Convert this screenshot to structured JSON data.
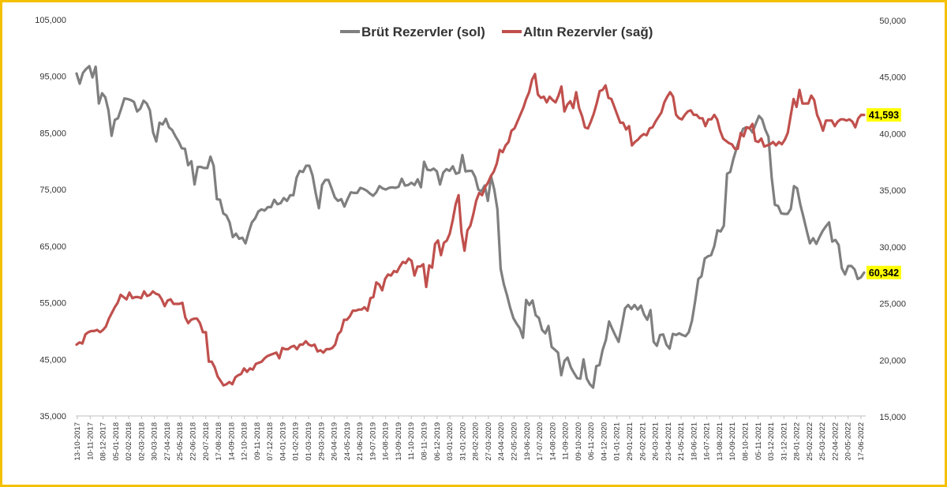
{
  "chart_data": {
    "type": "line",
    "legend_position": "top-center",
    "grid": false,
    "series": [
      {
        "name": "Brüt Rezervler (sol)",
        "axis": "left",
        "color": "#7f7f7f",
        "end_label": "60,342",
        "values": [
          95.5,
          93.7,
          95.6,
          96.3,
          96.8,
          94.8,
          96.7,
          90.2,
          92.0,
          91.3,
          89.0,
          84.5,
          87.3,
          87.6,
          89.3,
          91.1,
          91.0,
          90.8,
          90.5,
          88.8,
          89.3,
          90.7,
          90.2,
          89.0,
          85.1,
          83.5,
          86.8,
          86.5,
          87.5,
          86.0,
          85.5,
          84.4,
          83.5,
          82.3,
          82.2,
          79.3,
          80.0,
          75.9,
          79.0,
          79.0,
          78.8,
          78.8,
          80.8,
          79.2,
          73.3,
          73.2,
          70.8,
          70.4,
          69.2,
          66.6,
          67.2,
          66.3,
          66.5,
          65.5,
          67.5,
          69.2,
          69.9,
          71.1,
          71.5,
          71.3,
          71.9,
          71.9,
          73.2,
          72.4,
          72.6,
          73.5,
          73.0,
          74.0,
          74.0,
          77.1,
          78.3,
          78.1,
          79.2,
          79.2,
          77.5,
          74.4,
          71.7,
          75.8,
          76.7,
          76.7,
          75.2,
          73.6,
          73.0,
          73.3,
          72.0,
          73.3,
          74.5,
          74.4,
          74.4,
          75.3,
          75.1,
          74.8,
          74.3,
          73.9,
          74.5,
          75.6,
          75.2,
          75.0,
          75.3,
          75.4,
          75.3,
          75.5,
          76.9,
          75.7,
          75.8,
          76.2,
          75.8,
          76.8,
          75.4,
          79.9,
          78.5,
          78.4,
          78.7,
          78.2,
          75.9,
          78.0,
          78.6,
          78.3,
          79.1,
          77.8,
          78.0,
          81.1,
          78.2,
          78.3,
          78.3,
          77.2,
          75.0,
          74.7,
          75.7,
          73.0,
          77.3,
          75.0,
          71.5,
          61.0,
          58.3,
          56.3,
          54.1,
          52.3,
          51.3,
          50.5,
          48.8,
          55.5,
          54.6,
          55.4,
          52.8,
          52.3,
          50.2,
          49.6,
          50.9,
          47.2,
          46.7,
          46.2,
          42.2,
          44.7,
          45.3,
          43.6,
          42.6,
          41.7,
          41.6,
          45.0,
          41.6,
          40.6,
          40.0,
          43.8,
          44.0,
          46.7,
          48.4,
          51.7,
          50.4,
          49.2,
          48.1,
          50.9,
          54.0,
          54.6,
          53.9,
          54.6,
          53.8,
          54.5,
          52.9,
          52.0,
          53.7,
          48.1,
          47.4,
          49.3,
          49.4,
          47.6,
          46.9,
          49.5,
          49.3,
          49.6,
          49.3,
          49.1,
          49.8,
          51.8,
          55.3,
          59.2,
          59.7,
          62.8,
          63.2,
          63.4,
          65.0,
          67.8,
          67.6,
          68.6,
          77.8,
          78.1,
          80.4,
          82.3,
          84.1,
          85.7,
          86.0,
          85.9,
          85.1,
          86.6,
          88.0,
          87.4,
          85.6,
          84.3,
          77.2,
          72.3,
          72.1,
          70.8,
          70.7,
          70.7,
          71.6,
          75.6,
          75.2,
          72.3,
          70.1,
          67.7,
          65.5,
          66.4,
          65.4,
          66.6,
          67.7,
          68.5,
          69.2,
          65.8,
          66.1,
          65.2,
          61.1,
          60.0,
          61.5,
          61.5,
          60.9,
          59.2,
          59.5,
          60.342
        ]
      },
      {
        "name": "Altın Rezervler (sağ)",
        "axis": "right",
        "color": "#c0504d",
        "end_label": "41,593",
        "values": [
          21.3,
          21.5,
          21.4,
          22.2,
          22.4,
          22.5,
          22.5,
          22.6,
          22.4,
          22.6,
          22.9,
          23.6,
          24.1,
          24.6,
          25.0,
          25.7,
          25.5,
          25.3,
          25.9,
          25.4,
          25.5,
          25.5,
          25.4,
          26.0,
          25.6,
          25.7,
          26.0,
          25.8,
          25.7,
          25.3,
          24.7,
          25.2,
          25.3,
          24.9,
          24.9,
          24.9,
          25.0,
          23.7,
          23.2,
          23.5,
          23.6,
          23.6,
          23.2,
          22.4,
          22.4,
          19.8,
          19.8,
          19.3,
          18.5,
          18.1,
          17.7,
          17.8,
          18.0,
          17.8,
          18.4,
          18.6,
          18.7,
          19.2,
          18.9,
          19.2,
          19.1,
          19.6,
          19.7,
          19.8,
          20.1,
          20.3,
          20.4,
          20.5,
          20.6,
          20.1,
          21.0,
          20.9,
          20.9,
          21.1,
          21.2,
          20.9,
          21.3,
          21.3,
          21.6,
          21.3,
          21.2,
          21.3,
          20.7,
          20.8,
          20.6,
          20.9,
          20.9,
          21.0,
          21.3,
          22.2,
          22.5,
          23.5,
          23.5,
          23.8,
          24.3,
          24.3,
          24.4,
          24.4,
          24.6,
          24.3,
          25.4,
          25.5,
          26.8,
          26.6,
          26.1,
          27.1,
          27.5,
          27.4,
          27.8,
          27.7,
          28.2,
          28.6,
          28.5,
          28.9,
          28.7,
          27.4,
          28.2,
          28.2,
          28.4,
          26.4,
          28.3,
          28.1,
          30.2,
          30.5,
          29.2,
          30.3,
          30.5,
          31.1,
          32.3,
          33.7,
          34.5,
          31.2,
          29.6,
          31.4,
          31.8,
          32.8,
          34.0,
          34.7,
          34.5,
          35.2,
          35.6,
          36.2,
          36.6,
          37.3,
          38.5,
          38.3,
          38.9,
          39.2,
          40.2,
          40.4,
          41.0,
          41.6,
          42.2,
          43.0,
          43.6,
          44.7,
          45.2,
          43.4,
          43.1,
          43.2,
          42.7,
          43.2,
          42.9,
          42.7,
          43.3,
          44.1,
          41.9,
          42.5,
          42.8,
          42.2,
          43.6,
          42.2,
          41.5,
          40.5,
          40.4,
          41.0,
          41.7,
          42.6,
          43.7,
          43.8,
          44.2,
          43.1,
          43.0,
          42.3,
          41.6,
          40.9,
          40.9,
          40.3,
          40.6,
          38.9,
          39.2,
          39.4,
          39.7,
          39.9,
          39.8,
          40.4,
          40.5,
          41.0,
          41.4,
          41.8,
          42.7,
          43.2,
          43.6,
          43.2,
          41.6,
          41.3,
          41.2,
          41.6,
          41.9,
          42.0,
          41.6,
          41.6,
          41.3,
          41.3,
          40.6,
          41.2,
          41.2,
          41.6,
          41.2,
          40.2,
          39.5,
          39.3,
          39.1,
          39.0,
          38.6,
          38.6,
          40.0,
          39.7,
          40.5,
          40.4,
          40.8,
          39.3,
          39.2,
          39.5,
          38.8,
          38.9,
          39.0,
          39.2,
          38.9,
          39.2,
          39.0,
          39.4,
          40.0,
          41.5,
          43.0,
          42.3,
          43.8,
          42.6,
          42.6,
          42.6,
          43.3,
          42.9,
          41.6,
          41.0,
          40.2,
          41.1,
          41.1,
          41.1,
          40.6,
          41.0,
          41.2,
          41.2,
          41.1,
          41.2,
          41.0,
          40.5,
          41.3,
          41.6,
          41.593
        ]
      }
    ],
    "left_axis": {
      "min": 35000,
      "max": 105000,
      "ticks": [
        "35,000",
        "45,000",
        "55,000",
        "65,000",
        "75,000",
        "85,000",
        "95,000",
        "105,000"
      ]
    },
    "right_axis": {
      "min": 15000,
      "max": 50000,
      "ticks": [
        "15,000",
        "20,000",
        "25,000",
        "30,000",
        "35,000",
        "40,000",
        "45,000",
        "50,000"
      ]
    },
    "x_tick_labels": [
      "13-10-2017",
      "10-11-2017",
      "08-12-2017",
      "05-01-2018",
      "02-02-2018",
      "02-03-2018",
      "30-03-2018",
      "27-04-2018",
      "25-05-2018",
      "22-06-2018",
      "20-07-2018",
      "17-08-2018",
      "14-09-2018",
      "12-10-2018",
      "09-11-2018",
      "07-12-2018",
      "04-01-2019",
      "01-02-2019",
      "01-03-2019",
      "29-03-2019",
      "26-04-2019",
      "24-05-2019",
      "21-06-2019",
      "19-07-2019",
      "16-08-2019",
      "13-09-2019",
      "11-10-2019",
      "08-11-2019",
      "06-12-2019",
      "03-01-2020",
      "31-01-2020",
      "28-02-2020",
      "27-03-2020",
      "24-04-2020",
      "22-05-2020",
      "19-06-2020",
      "17-07-2020",
      "14-08-2020",
      "11-09-2020",
      "09-10-2020",
      "06-11-2020",
      "04-12-2020",
      "01-01-2021",
      "29-01-2021",
      "26-02-2021",
      "26-03-2021",
      "23-04-2021",
      "21-05-2021",
      "18-06-2021",
      "16-07-2021",
      "13-08-2021",
      "10-09-2021",
      "08-10-2021",
      "05-11-2021",
      "03-12-2021",
      "31-12-2021",
      "28-01-2022",
      "25-02-2022",
      "25-03-2022",
      "22-04-2022",
      "20-05-2022",
      "17-06-2022"
    ]
  }
}
